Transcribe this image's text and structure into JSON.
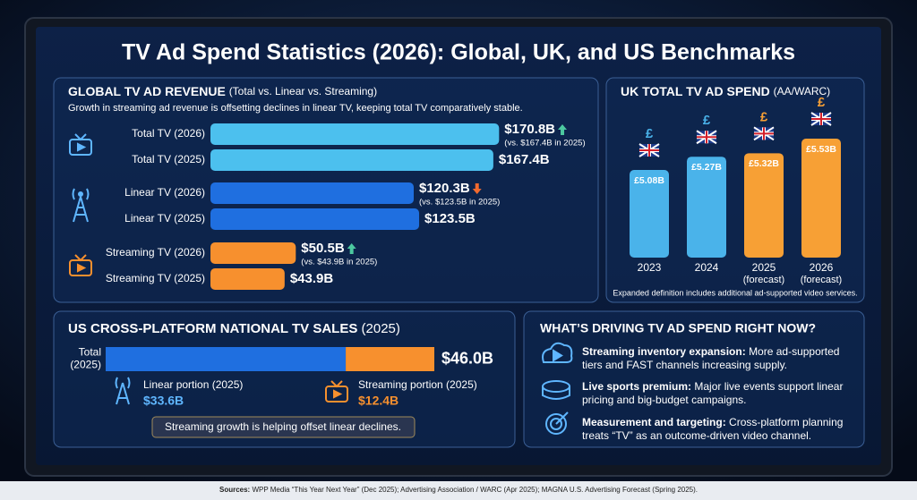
{
  "title": "TV Ad Spend Statistics (2026): Global, UK, and US Benchmarks",
  "chart_data": [
    {
      "type": "hbar",
      "title": "GLOBAL TV AD REVENUE",
      "subtitle": "(Total vs. Linear vs. Streaming)",
      "description": "Growth in streaming ad revenue is offsetting declines in linear TV, keeping total TV comparatively stable.",
      "categories": [
        "Total TV (2026)",
        "Total TV (2025)",
        "Linear TV (2026)",
        "Linear TV (2025)",
        "Streaming TV (2026)",
        "Streaming TV (2025)"
      ],
      "values": [
        170.8,
        167.4,
        120.3,
        123.5,
        50.5,
        43.9
      ],
      "value_labels": [
        "$170.8B",
        "$167.4B",
        "$120.3B",
        "$123.5B",
        "$50.5B",
        "$43.9B"
      ],
      "annotations": [
        "(vs. $167.4B in 2025)",
        null,
        "(vs. $123.5B in 2025)",
        null,
        "(vs. $43.9B in 2025)",
        null
      ],
      "colors": [
        "#4cc0ee",
        "#4cc0ee",
        "#1f6fe0",
        "#1f6fe0",
        "#f7902e",
        "#f7902e"
      ]
    },
    {
      "type": "bar",
      "title": "UK TOTAL TV AD SPEND",
      "subtitle": "(AA/WARC)",
      "categories": [
        "2023",
        "2024",
        "2025",
        "2026"
      ],
      "category_notes": [
        null,
        null,
        "(forecast)",
        "(forecast)"
      ],
      "values": [
        5.08,
        5.27,
        5.32,
        5.53
      ],
      "value_labels": [
        "£5.08B",
        "£5.27B",
        "£5.32B",
        "£5.53B"
      ],
      "currency_symbol": "£",
      "colors": [
        "#4ab3ea",
        "#4ab3ea",
        "#f7a035",
        "#f7a035"
      ],
      "footnote": "Expanded definition includes additional ad-supported video services."
    },
    {
      "type": "stacked-hbar",
      "title": "US CROSS-PLATFORM NATIONAL TV SALES",
      "subtitle": "(2025)",
      "category": "Total (2025)",
      "total": 46.0,
      "total_label": "$46.0B",
      "series": [
        {
          "name": "Linear portion (2025)",
          "color": "#1f6fe0",
          "values": [
            33.6
          ],
          "value_labels": [
            "$33.6B"
          ]
        },
        {
          "name": "Streaming portion (2025)",
          "color": "#f7902e",
          "values": [
            12.4
          ],
          "value_labels": [
            "$12.4B"
          ]
        }
      ],
      "note": "Streaming growth is helping offset linear declines."
    }
  ],
  "drivers": {
    "title": "WHAT’S DRIVING TV AD SPEND RIGHT NOW?",
    "items": [
      {
        "heading": "Streaming inventory expansion:",
        "text": "More ad-supported tiers and FAST channels increasing supply."
      },
      {
        "heading": "Live sports premium:",
        "text": "Major live events support linear pricing and big-budget campaigns."
      },
      {
        "heading": "Measurement and targeting:",
        "text": "Cross-platform planning treats “TV” as an outcome-driven video channel."
      }
    ]
  },
  "sources": {
    "label": "Sources:",
    "text": "WPP Media “This Year Next Year” (Dec 2025); Advertising Association / WARC (Apr 2025); MAGNA U.S. Advertising Forecast (Spring 2025)."
  }
}
